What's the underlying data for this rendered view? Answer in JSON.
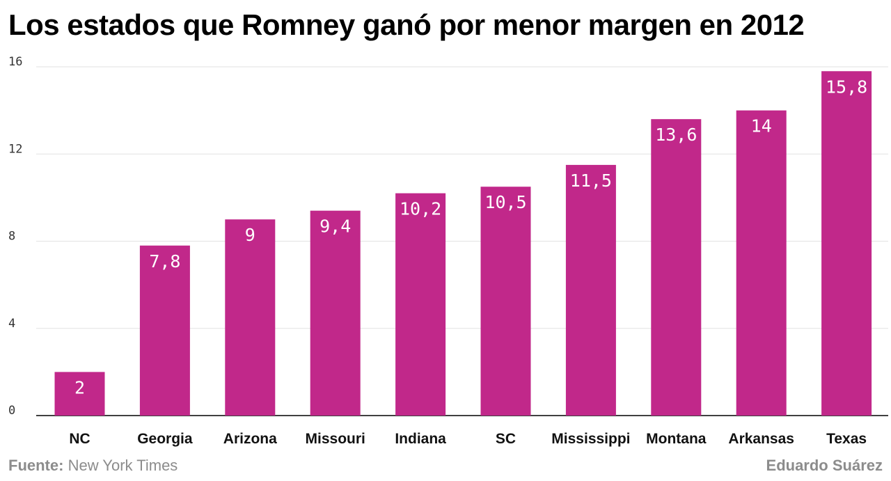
{
  "chart_data": {
    "type": "bar",
    "title": "Los estados que Romney ganó por menor margen en 2012",
    "categories": [
      "NC",
      "Georgia",
      "Arizona",
      "Missouri",
      "Indiana",
      "SC",
      "Mississippi",
      "Montana",
      "Arkansas",
      "Texas"
    ],
    "values": [
      2,
      7.8,
      9,
      9.4,
      10.2,
      10.5,
      11.5,
      13.6,
      14,
      15.8
    ],
    "value_labels": [
      "2",
      "7,8",
      "9",
      "9,4",
      "10,2",
      "10,5",
      "11,5",
      "13,6",
      "14",
      "15,8"
    ],
    "ylim": [
      0,
      16
    ],
    "yticks": [
      0,
      4,
      8,
      12,
      16
    ],
    "grid": true,
    "xlabel": "",
    "ylabel": "",
    "bar_color": "#c1288a"
  },
  "footer": {
    "source_label": "Fuente:",
    "source_value": "New York Times",
    "author": "Eduardo Suárez"
  }
}
